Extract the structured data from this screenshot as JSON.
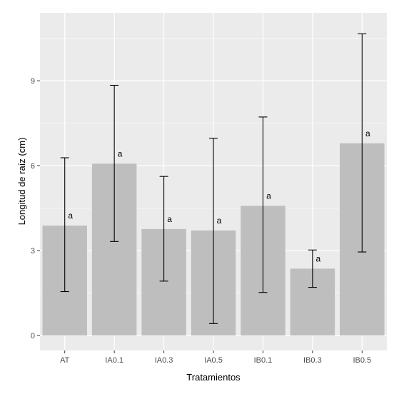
{
  "chart_data": {
    "type": "bar",
    "title": "",
    "xlabel": "Tratamientos",
    "ylabel": "Longitud de raíz (cm)",
    "categories": [
      "AT",
      "IA0.1",
      "IA0.3",
      "IA0.5",
      "IB0.1",
      "IB0.3",
      "IB0.5"
    ],
    "values": [
      3.88,
      6.07,
      3.76,
      3.71,
      4.58,
      2.36,
      6.79
    ],
    "error_low": [
      1.55,
      3.32,
      1.92,
      0.42,
      1.52,
      1.7,
      2.95
    ],
    "error_high": [
      6.28,
      8.84,
      5.62,
      6.97,
      7.72,
      3.02,
      10.66
    ],
    "labels": [
      "a",
      "a",
      "a",
      "a",
      "a",
      "a",
      "a"
    ],
    "yticks": [
      0,
      3,
      6,
      9
    ],
    "ylim": [
      -0.53,
      11.4
    ],
    "grid": true,
    "legend": "none",
    "colors": {
      "panel": "#ebebeb",
      "bar": "#bebebe",
      "grid": "#ffffff",
      "errorbar": "#000000"
    }
  }
}
